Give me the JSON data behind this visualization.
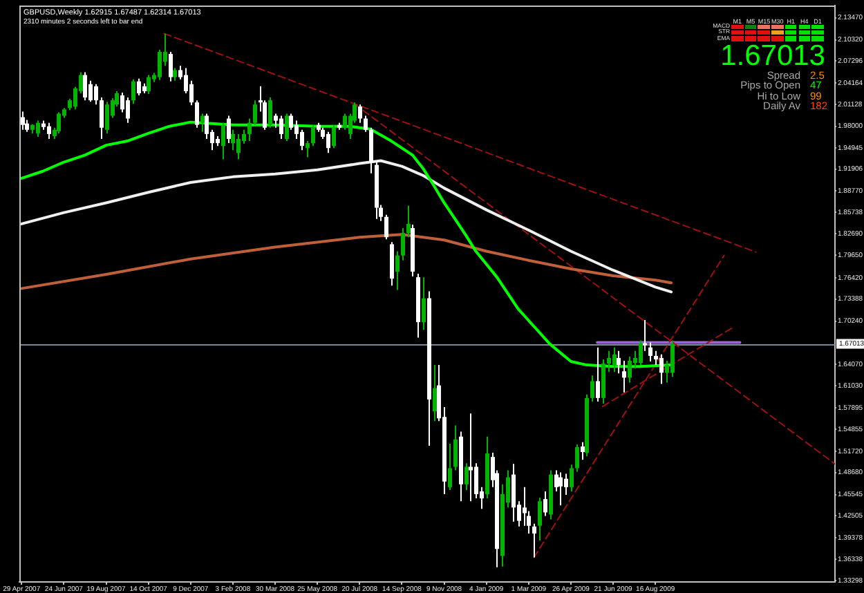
{
  "chart_data": [
    {
      "type": "candlestick",
      "title": "GBPUSD,Weekly 1.62915 1.67487 1.62314 1.67013",
      "subtitle": "2310 minutes 2 seconds left to bar end",
      "x": [
        "2007-04-29",
        "2007-05-06",
        "2007-05-13",
        "2007-05-20",
        "2007-05-27",
        "2007-06-03",
        "2007-06-10",
        "2007-06-17",
        "2007-06-24",
        "2007-07-01",
        "2007-07-08",
        "2007-07-15",
        "2007-07-22",
        "2007-07-29",
        "2007-08-05",
        "2007-08-12",
        "2007-08-19",
        "2007-08-26",
        "2007-09-02",
        "2007-09-09",
        "2007-09-16",
        "2007-09-23",
        "2007-09-30",
        "2007-10-07",
        "2007-10-14",
        "2007-10-21",
        "2007-10-28",
        "2007-11-04",
        "2007-11-11",
        "2007-11-18",
        "2007-11-25",
        "2007-12-02",
        "2007-12-09",
        "2007-12-16",
        "2007-12-23",
        "2007-12-30",
        "2008-01-06",
        "2008-01-13",
        "2008-01-20",
        "2008-01-27",
        "2008-02-03",
        "2008-02-10",
        "2008-02-17",
        "2008-02-24",
        "2008-03-02",
        "2008-03-09",
        "2008-03-16",
        "2008-03-23",
        "2008-03-30",
        "2008-04-06",
        "2008-04-13",
        "2008-04-20",
        "2008-04-27",
        "2008-05-04",
        "2008-05-11",
        "2008-05-18",
        "2008-05-25",
        "2008-06-01",
        "2008-06-08",
        "2008-06-15",
        "2008-06-22",
        "2008-06-29",
        "2008-07-06",
        "2008-07-13",
        "2008-07-20",
        "2008-07-27",
        "2008-08-03",
        "2008-08-10",
        "2008-08-17",
        "2008-08-24",
        "2008-08-31",
        "2008-09-07",
        "2008-09-14",
        "2008-09-21",
        "2008-09-28",
        "2008-10-05",
        "2008-10-12",
        "2008-10-19",
        "2008-10-26",
        "2008-11-02",
        "2008-11-09",
        "2008-11-16",
        "2008-11-23",
        "2008-11-30",
        "2008-12-07",
        "2008-12-14",
        "2008-12-21",
        "2008-12-28",
        "2009-01-04",
        "2009-01-11",
        "2009-01-18",
        "2009-01-25",
        "2009-02-01",
        "2009-02-08",
        "2009-02-15",
        "2009-02-22",
        "2009-03-01",
        "2009-03-08",
        "2009-03-15",
        "2009-03-22",
        "2009-03-29",
        "2009-04-05",
        "2009-04-12",
        "2009-04-19",
        "2009-04-26",
        "2009-05-03",
        "2009-05-10",
        "2009-05-17",
        "2009-05-24",
        "2009-05-31",
        "2009-06-07",
        "2009-06-14",
        "2009-06-21",
        "2009-06-28",
        "2009-07-05",
        "2009-07-12",
        "2009-07-19",
        "2009-07-26",
        "2009-08-02",
        "2009-08-09",
        "2009-08-16",
        "2009-08-23",
        "2009-08-30",
        "2009-09-06"
      ],
      "ohlc": [
        [
          1.993,
          2.001,
          1.975,
          1.982
        ],
        [
          1.984,
          1.989,
          1.972,
          1.975
        ],
        [
          1.975,
          1.983,
          1.97,
          1.982
        ],
        [
          1.97,
          1.988,
          1.965,
          1.985
        ],
        [
          1.984,
          1.988,
          1.975,
          1.979
        ],
        [
          1.98,
          1.985,
          1.962,
          1.969
        ],
        [
          1.966,
          1.978,
          1.962,
          1.975
        ],
        [
          1.973,
          2.0,
          1.97,
          1.998
        ],
        [
          1.995,
          2.006,
          1.992,
          2.004
        ],
        [
          2.006,
          2.019,
          2.003,
          2.017
        ],
        [
          2.008,
          2.036,
          2.004,
          2.034
        ],
        [
          2.03,
          2.057,
          2.027,
          2.053
        ],
        [
          2.053,
          2.057,
          2.017,
          2.021
        ],
        [
          2.04,
          2.045,
          2.015,
          2.017
        ],
        [
          2.037,
          2.04,
          2.011,
          2.017
        ],
        [
          2.017,
          2.021,
          1.962,
          1.978
        ],
        [
          1.975,
          2.015,
          1.97,
          2.011
        ],
        [
          1.995,
          2.02,
          1.992,
          2.017
        ],
        [
          2.011,
          2.03,
          2.008,
          2.027
        ],
        [
          2.024,
          2.028,
          2.0,
          2.004
        ],
        [
          2.017,
          2.021,
          1.985,
          1.991
        ],
        [
          2.017,
          2.047,
          2.012,
          2.044
        ],
        [
          2.044,
          2.048,
          2.024,
          2.027
        ],
        [
          2.037,
          2.041,
          2.027,
          2.03
        ],
        [
          2.03,
          2.053,
          2.026,
          2.05
        ],
        [
          2.047,
          2.056,
          2.043,
          2.053
        ],
        [
          2.05,
          2.089,
          2.046,
          2.086
        ],
        [
          2.072,
          2.112,
          2.066,
          2.086
        ],
        [
          2.083,
          2.086,
          2.044,
          2.05
        ],
        [
          2.05,
          2.063,
          2.045,
          2.06
        ],
        [
          2.06,
          2.066,
          2.047,
          2.05
        ],
        [
          2.053,
          2.063,
          2.027,
          2.03
        ],
        [
          2.04,
          2.045,
          2.01,
          2.014
        ],
        [
          2.014,
          2.017,
          1.978,
          1.982
        ],
        [
          1.985,
          1.998,
          1.972,
          1.995
        ],
        [
          1.995,
          1.998,
          1.962,
          1.969
        ],
        [
          1.972,
          1.975,
          1.946,
          1.956
        ],
        [
          1.962,
          1.966,
          1.952,
          1.956
        ],
        [
          1.952,
          1.985,
          1.933,
          1.982
        ],
        [
          1.991,
          1.995,
          1.956,
          1.962
        ],
        [
          1.956,
          1.975,
          1.946,
          1.969
        ],
        [
          1.942,
          1.969,
          1.933,
          1.962
        ],
        [
          1.959,
          1.975,
          1.955,
          1.969
        ],
        [
          1.969,
          1.991,
          1.959,
          1.985
        ],
        [
          1.985,
          2.017,
          1.982,
          2.011
        ],
        [
          2.017,
          2.037,
          2.001,
          2.014
        ],
        [
          2.014,
          2.017,
          1.975,
          1.978
        ],
        [
          1.982,
          2.021,
          1.978,
          2.017
        ],
        [
          1.995,
          1.998,
          1.978,
          1.988
        ],
        [
          1.991,
          1.995,
          1.962,
          1.969
        ],
        [
          1.962,
          1.998,
          1.959,
          1.995
        ],
        [
          1.995,
          1.998,
          1.975,
          1.978
        ],
        [
          1.982,
          1.988,
          1.962,
          1.969
        ],
        [
          1.972,
          1.975,
          1.946,
          1.952
        ],
        [
          1.949,
          1.959,
          1.936,
          1.956
        ],
        [
          1.956,
          1.982,
          1.952,
          1.978
        ],
        [
          1.982,
          1.985,
          1.972,
          1.975
        ],
        [
          1.975,
          1.978,
          1.962,
          1.965
        ],
        [
          1.969,
          1.972,
          1.942,
          1.949
        ],
        [
          1.952,
          1.982,
          1.949,
          1.978
        ],
        [
          1.982,
          1.985,
          1.975,
          1.978
        ],
        [
          1.978,
          1.998,
          1.975,
          1.995
        ],
        [
          1.969,
          1.998,
          1.962,
          1.995
        ],
        [
          1.988,
          2.014,
          1.985,
          2.011
        ],
        [
          2.008,
          2.011,
          1.985,
          1.991
        ],
        [
          1.991,
          1.995,
          1.972,
          1.975
        ],
        [
          1.975,
          1.978,
          1.913,
          1.929
        ],
        [
          1.925,
          1.93,
          1.848,
          1.864
        ],
        [
          1.864,
          1.868,
          1.845,
          1.851
        ],
        [
          1.851,
          1.854,
          1.819,
          1.822
        ],
        [
          1.812,
          1.815,
          1.753,
          1.763
        ],
        [
          1.773,
          1.802,
          1.747,
          1.796
        ],
        [
          1.796,
          1.835,
          1.789,
          1.828
        ],
        [
          1.828,
          1.867,
          1.822,
          1.841
        ],
        [
          1.835,
          1.84,
          1.766,
          1.773
        ],
        [
          1.765,
          1.77,
          1.679,
          1.701
        ],
        [
          1.701,
          1.765,
          1.69,
          1.735
        ],
        [
          1.735,
          1.745,
          1.525,
          1.591
        ],
        [
          1.574,
          1.64,
          1.56,
          1.607
        ],
        [
          1.611,
          1.64,
          1.56,
          1.564
        ],
        [
          1.566,
          1.58,
          1.456,
          1.474
        ],
        [
          1.466,
          1.528,
          1.462,
          1.493
        ],
        [
          1.495,
          1.554,
          1.49,
          1.534
        ],
        [
          1.538,
          1.545,
          1.446,
          1.47
        ],
        [
          1.47,
          1.5,
          1.462,
          1.495
        ],
        [
          1.495,
          1.571,
          1.446,
          1.49
        ],
        [
          1.495,
          1.5,
          1.45,
          1.456
        ],
        [
          1.46,
          1.466,
          1.435,
          1.45
        ],
        [
          1.456,
          1.538,
          1.45,
          1.514
        ],
        [
          1.509,
          1.515,
          1.466,
          1.476
        ],
        [
          1.486,
          1.49,
          1.352,
          1.378
        ],
        [
          1.368,
          1.47,
          1.353,
          1.456
        ],
        [
          1.444,
          1.49,
          1.437,
          1.48
        ],
        [
          1.484,
          1.499,
          1.417,
          1.437
        ],
        [
          1.441,
          1.446,
          1.41,
          1.418
        ],
        [
          1.437,
          1.466,
          1.411,
          1.429
        ],
        [
          1.425,
          1.432,
          1.4,
          1.411
        ],
        [
          1.41,
          1.414,
          1.366,
          1.4
        ],
        [
          1.411,
          1.451,
          1.39,
          1.446
        ],
        [
          1.449,
          1.46,
          1.425,
          1.43
        ],
        [
          1.427,
          1.49,
          1.42,
          1.484
        ],
        [
          1.484,
          1.49,
          1.46,
          1.466
        ],
        [
          1.48,
          1.487,
          1.44,
          1.467
        ],
        [
          1.478,
          1.485,
          1.455,
          1.466
        ],
        [
          1.466,
          1.498,
          1.46,
          1.493
        ],
        [
          1.493,
          1.527,
          1.488,
          1.523
        ],
        [
          1.524,
          1.53,
          1.505,
          1.516
        ],
        [
          1.515,
          1.598,
          1.51,
          1.593
        ],
        [
          1.593,
          1.625,
          1.588,
          1.617
        ],
        [
          1.617,
          1.665,
          1.588,
          1.593
        ],
        [
          1.593,
          1.648,
          1.585,
          1.642
        ],
        [
          1.642,
          1.66,
          1.63,
          1.65
        ],
        [
          1.64,
          1.665,
          1.63,
          1.655
        ],
        [
          1.65,
          1.66,
          1.628,
          1.64
        ],
        [
          1.631,
          1.646,
          1.601,
          1.622
        ],
        [
          1.622,
          1.652,
          1.615,
          1.646
        ],
        [
          1.643,
          1.66,
          1.635,
          1.65
        ],
        [
          1.643,
          1.675,
          1.64,
          1.671
        ],
        [
          1.671,
          1.704,
          1.66,
          1.668
        ],
        [
          1.665,
          1.672,
          1.645,
          1.653
        ],
        [
          1.653,
          1.66,
          1.64,
          1.648
        ],
        [
          1.65,
          1.655,
          1.613,
          1.629
        ],
        [
          1.629,
          1.646,
          1.615,
          1.64
        ],
        [
          1.62915,
          1.67487,
          1.62314,
          1.67013
        ]
      ],
      "xlim": [
        "2007-04-26",
        "2010-04-11"
      ],
      "xticks": [
        {
          "value": "2007-04-29",
          "label": "29 Apr 2007"
        },
        {
          "value": "2007-06-24",
          "label": "24 Jun 2007"
        },
        {
          "value": "2007-08-19",
          "label": "19 Aug 2007"
        },
        {
          "value": "2007-10-14",
          "label": "14 Oct 2007"
        },
        {
          "value": "2007-12-09",
          "label": "9 Dec 2007"
        },
        {
          "value": "2008-02-03",
          "label": "3 Feb 2008"
        },
        {
          "value": "2008-03-30",
          "label": "30 Mar 2008"
        },
        {
          "value": "2008-05-25",
          "label": "25 May 2008"
        },
        {
          "value": "2008-07-20",
          "label": "20 Jul 2008"
        },
        {
          "value": "2008-09-14",
          "label": "14 Sep 2008"
        },
        {
          "value": "2008-11-09",
          "label": "9 Nov 2008"
        },
        {
          "value": "2009-01-04",
          "label": "4 Jan 2009"
        },
        {
          "value": "2009-03-01",
          "label": "1 Mar 2009"
        },
        {
          "value": "2009-04-26",
          "label": "26 Apr 2009"
        },
        {
          "value": "2009-06-21",
          "label": "21 Jun 2009"
        },
        {
          "value": "2009-08-16",
          "label": "16 Aug 2009"
        }
      ],
      "ylim": [
        1.331,
        2.152
      ],
      "yticks": [
        1.33298,
        1.36338,
        1.39378,
        1.42505,
        1.45545,
        {
          "value": 1.4868,
          "label": "1.48680"
        },
        {
          "value": 1.5172,
          "label": "1.51720"
        },
        1.54855,
        1.57895,
        {
          "value": 1.6103,
          "label": "1.61030"
        },
        {
          "value": 1.6407,
          "label": "1.64070"
        },
        {
          "value": 1.7024,
          "label": "1.70240"
        },
        1.73388,
        {
          "value": 1.7642,
          "label": "1.76420"
        },
        {
          "value": 1.7965,
          "label": "1.79650"
        },
        {
          "value": 1.8269,
          "label": "1.82690"
        },
        1.85738,
        {
          "value": 1.8877,
          "label": "1.88770"
        },
        1.91906,
        1.94945,
        {
          "value": 1.98,
          "label": "1.98000"
        },
        2.01128,
        2.04164,
        2.07296,
        {
          "value": 2.1032,
          "label": "2.10320"
        },
        {
          "value": 2.1347,
          "label": "2.13470"
        }
      ],
      "series": [
        {
          "type": "line",
          "color": "#00ff00",
          "x": [
            "2007-04-29",
            "2007-05-27",
            "2007-06-24",
            "2007-07-22",
            "2007-08-19",
            "2007-09-16",
            "2007-10-14",
            "2007-11-11",
            "2007-12-09",
            "2008-01-06",
            "2008-02-03",
            "2008-03-30",
            "2008-05-25",
            "2008-07-06",
            "2008-08-03",
            "2008-08-31",
            "2008-09-28",
            "2008-10-12",
            "2008-10-26",
            "2008-11-09",
            "2008-12-07",
            "2008-12-21",
            "2009-01-18",
            "2009-02-15",
            "2009-03-08",
            "2009-03-29",
            "2009-04-26",
            "2009-05-17",
            "2009-06-21",
            "2009-07-26",
            "2009-09-06"
          ],
          "values": [
            1.906,
            1.916,
            1.929,
            1.939,
            1.953,
            1.959,
            1.97,
            1.98,
            1.986,
            1.984,
            1.982,
            1.982,
            1.98,
            1.98,
            1.976,
            1.959,
            1.939,
            1.92,
            1.896,
            1.871,
            1.826,
            1.802,
            1.765,
            1.72,
            1.695,
            1.67,
            1.645,
            1.64,
            1.638,
            1.638,
            1.64
          ]
        },
        {
          "type": "line",
          "color": "#f0f0f0",
          "x": [
            "2007-04-29",
            "2007-06-24",
            "2007-08-19",
            "2007-10-14",
            "2007-12-09",
            "2008-02-03",
            "2008-03-30",
            "2008-05-25",
            "2008-07-20",
            "2008-08-17",
            "2008-09-14",
            "2008-10-12",
            "2008-11-09",
            "2009-01-04",
            "2009-03-01",
            "2009-04-26",
            "2009-06-21",
            "2009-08-16",
            "2009-09-06"
          ],
          "values": [
            1.841,
            1.857,
            1.871,
            1.886,
            1.9,
            1.908,
            1.912,
            1.918,
            1.927,
            1.931,
            1.923,
            1.91,
            1.892,
            1.861,
            1.832,
            1.802,
            1.775,
            1.751,
            1.744
          ]
        },
        {
          "type": "line",
          "color": "#c0603a",
          "x": [
            "2007-04-29",
            "2007-08-19",
            "2007-12-09",
            "2008-03-30",
            "2008-07-20",
            "2008-09-14",
            "2008-11-09",
            "2009-01-04",
            "2009-03-01",
            "2009-04-26",
            "2009-06-21",
            "2009-08-16",
            "2009-09-06"
          ],
          "values": [
            1.749,
            1.769,
            1.791,
            1.808,
            1.822,
            1.826,
            1.818,
            1.802,
            1.789,
            1.777,
            1.767,
            1.761,
            1.757
          ]
        },
        {
          "type": "line",
          "color": "#a01010",
          "line_style": "dashed",
          "x": [
            "2007-11-04",
            "2009-12-27"
          ],
          "values": [
            2.112,
            1.801
          ]
        },
        {
          "type": "line",
          "color": "#a01010",
          "line_style": "dashed",
          "x": [
            "2008-07-13",
            "2010-04-11"
          ],
          "values": [
            2.012,
            1.499
          ]
        },
        {
          "type": "line",
          "color": "#a01010",
          "line_style": "dashed",
          "x": [
            "2009-03-08",
            "2009-11-15"
          ],
          "values": [
            1.366,
            1.796
          ]
        },
        {
          "type": "line",
          "color": "#a01010",
          "line_style": "dashed",
          "x": [
            "2009-06-07",
            "2009-11-29"
          ],
          "values": [
            1.581,
            1.695
          ]
        },
        {
          "type": "line",
          "color": "#9966cc",
          "x": [
            "2009-05-31",
            "2009-12-06"
          ],
          "values": [
            1.672,
            1.672
          ]
        }
      ],
      "ref_lines": [
        {
          "axis": "y",
          "value": 1.67013,
          "label": "1.67013",
          "color": "#778899"
        }
      ]
    },
    {
      "type": "other",
      "categories": [
        "M1",
        "M5",
        "M15",
        "M30",
        "H1",
        "H4",
        "D1"
      ],
      "y_categories": [
        "MACD",
        "STR",
        "EMA"
      ],
      "colors": [
        [
          "#e01010",
          "#108010",
          "#f07060",
          "#f07060",
          "#00e000",
          "#00e000",
          "#00e000"
        ],
        [
          "#e01010",
          "#e01010",
          "#e01010",
          "#f0a020",
          "#00e000",
          "#00e000",
          "#00e000"
        ],
        [
          "#e01010",
          "#e01010",
          "#e01010",
          "#e01010",
          "#00e000",
          "#00e000",
          "#00e000"
        ]
      ]
    },
    {
      "type": "other",
      "title": "1.67013",
      "color": "#00ff00",
      "categories": [
        "Spread",
        "Pips to Open",
        "Hi to Low",
        "Daily Av"
      ],
      "values": [
        2.5,
        47,
        99,
        182
      ],
      "data_labels": true,
      "colors": [
        "#ff8c00",
        "#00ff00",
        "#ff8c00",
        "#ff4500"
      ]
    }
  ]
}
